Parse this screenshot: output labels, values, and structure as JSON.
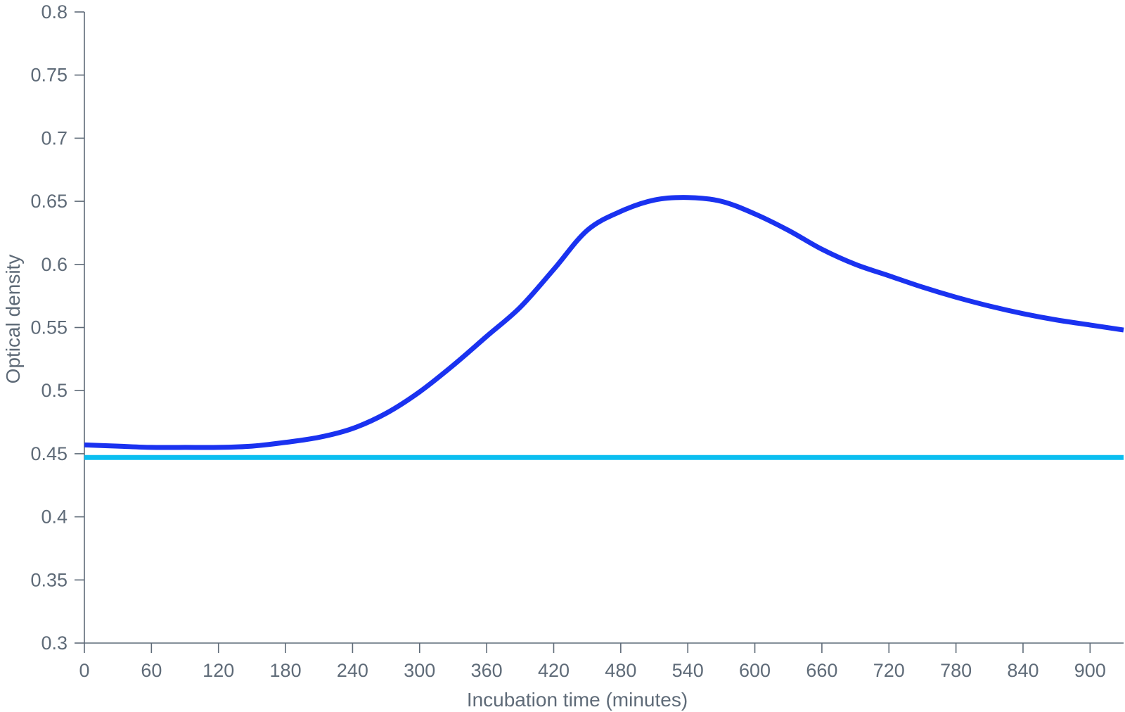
{
  "chart_data": {
    "type": "line",
    "title": "",
    "xlabel": "Incubation time (minutes)",
    "ylabel": "Optical density",
    "xlim": [
      0,
      930
    ],
    "ylim": [
      0.3,
      0.8
    ],
    "x_ticks": [
      0,
      60,
      120,
      180,
      240,
      300,
      360,
      420,
      480,
      540,
      600,
      660,
      720,
      780,
      840,
      900
    ],
    "x_tick_labels": [
      "0",
      "60",
      "120",
      "180",
      "240",
      "300",
      "360",
      "420",
      "480",
      "540",
      "600",
      "660",
      "720",
      "780",
      "840",
      "900"
    ],
    "y_ticks": [
      0.3,
      0.35,
      0.4,
      0.45,
      0.5,
      0.55,
      0.6,
      0.65,
      0.7,
      0.75,
      0.8
    ],
    "y_tick_labels": [
      "0.3",
      "0.35",
      "0.4",
      "0.45",
      "0.5",
      "0.55",
      "0.6",
      "0.65",
      "0.7",
      "0.75",
      "0.8"
    ],
    "grid": false,
    "legend": "none",
    "series": [
      {
        "color": "#1a32f0",
        "x": [
          0,
          30,
          60,
          90,
          120,
          150,
          180,
          210,
          240,
          270,
          300,
          330,
          360,
          390,
          420,
          450,
          480,
          510,
          540,
          570,
          600,
          630,
          660,
          690,
          720,
          750,
          780,
          810,
          840,
          870,
          900,
          930
        ],
        "y": [
          0.457,
          0.456,
          0.455,
          0.455,
          0.455,
          0.456,
          0.459,
          0.463,
          0.47,
          0.482,
          0.499,
          0.52,
          0.543,
          0.566,
          0.596,
          0.627,
          0.642,
          0.651,
          0.653,
          0.65,
          0.64,
          0.627,
          0.612,
          0.6,
          0.591,
          0.582,
          0.574,
          0.567,
          0.561,
          0.556,
          0.552,
          0.548
        ]
      },
      {
        "color": "#0bbef0",
        "x": [
          0,
          930
        ],
        "y": [
          0.447,
          0.447
        ]
      }
    ]
  }
}
